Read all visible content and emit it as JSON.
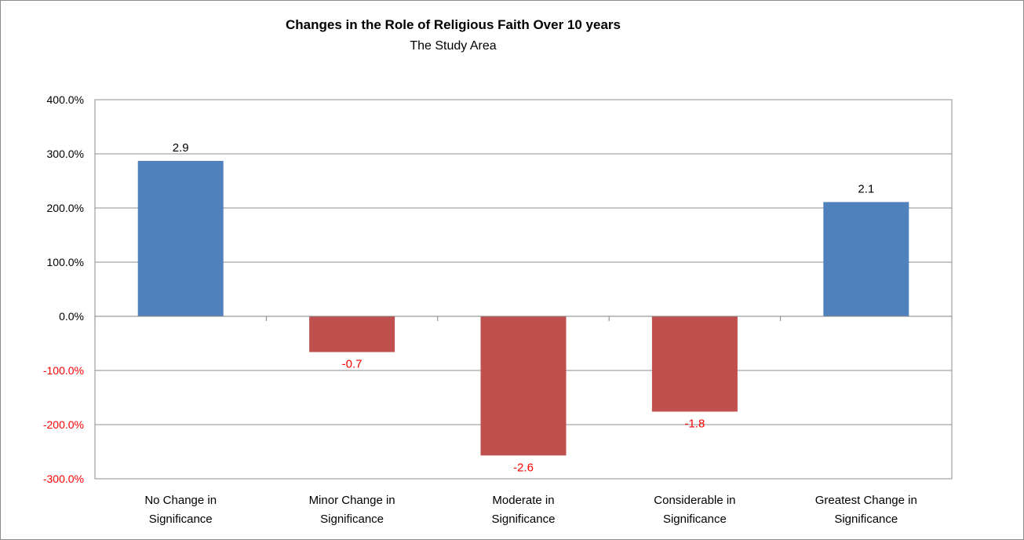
{
  "chart_data": {
    "type": "bar",
    "title": "Changes in the Role of Religious Faith Over 10 years",
    "subtitle": "The Study Area",
    "xlabel": "",
    "ylabel": "",
    "categories": [
      [
        "No Change in",
        "Significance"
      ],
      [
        "Minor Change in",
        "Significance"
      ],
      [
        "Moderate in",
        "Significance"
      ],
      [
        "Considerable in",
        "Significance"
      ],
      [
        "Greatest Change in",
        "Significance"
      ]
    ],
    "values": [
      2.87,
      -0.66,
      -2.57,
      -1.76,
      2.11
    ],
    "data_labels": [
      "2.9",
      "-0.7",
      "-2.6",
      "-1.8",
      "2.1"
    ],
    "ylim": [
      -3,
      4
    ],
    "yticks": [
      {
        "value": 4,
        "label": "400.0%"
      },
      {
        "value": 3,
        "label": "300.0%"
      },
      {
        "value": 2,
        "label": "200.0%"
      },
      {
        "value": 1,
        "label": "100.0%"
      },
      {
        "value": 0,
        "label": "0.0%"
      },
      {
        "value": -1,
        "label": "-100.0%"
      },
      {
        "value": -2,
        "label": "-200.0%"
      },
      {
        "value": -3,
        "label": "-300.0%"
      }
    ],
    "grid": true,
    "legend": "none",
    "colors": {
      "positive": "#4f81bd",
      "negative": "#c0504d",
      "negative_text": "#ff0000",
      "text": "#000000",
      "grid": "#8c8c8c"
    }
  }
}
